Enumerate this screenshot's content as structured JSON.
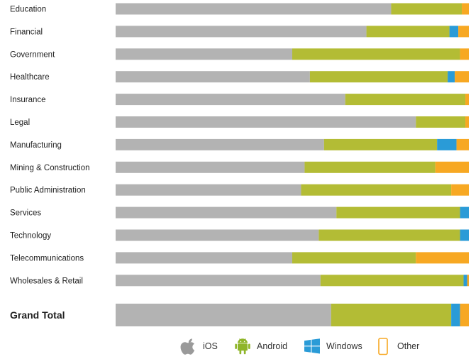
{
  "chart_data": {
    "type": "bar",
    "orientation": "horizontal",
    "stacked": true,
    "normalized": true,
    "categories": [
      "Education",
      "Financial",
      "Government",
      "Healthcare",
      "Insurance",
      "Legal",
      "Manufacturing",
      "Mining & Construction",
      "Public Administration",
      "Services",
      "Technology",
      "Telecommunications",
      "Wholesales & Retail",
      "Grand Total"
    ],
    "series": [
      {
        "name": "iOS",
        "color": "#b3b3b3",
        "values": [
          78,
          71,
          50,
          55,
          65,
          85,
          59,
          53.5,
          52.5,
          62.5,
          57.5,
          50,
          58,
          61
        ]
      },
      {
        "name": "Android",
        "color": "#b3bc35",
        "values": [
          20,
          23.5,
          47.5,
          39,
          34,
          14,
          32,
          37,
          42.5,
          35,
          40,
          35,
          40.5,
          34
        ]
      },
      {
        "name": "Windows",
        "color": "#2a9bd7",
        "values": [
          0,
          2.5,
          0,
          2,
          0,
          0,
          5.5,
          0,
          0,
          2.5,
          2.5,
          0,
          1,
          2.5
        ]
      },
      {
        "name": "Other",
        "color": "#f7a823",
        "values": [
          2,
          3,
          2.5,
          4,
          1,
          1,
          3.5,
          9.5,
          5,
          0,
          0,
          15,
          0.5,
          2.5
        ]
      }
    ],
    "xlim": [
      0,
      100
    ],
    "title": "",
    "xlabel": "",
    "ylabel": "",
    "grid": false,
    "legend": "bottom",
    "legend_icons": [
      "apple-icon",
      "android-icon",
      "windows-icon",
      "other-device-icon"
    ]
  }
}
